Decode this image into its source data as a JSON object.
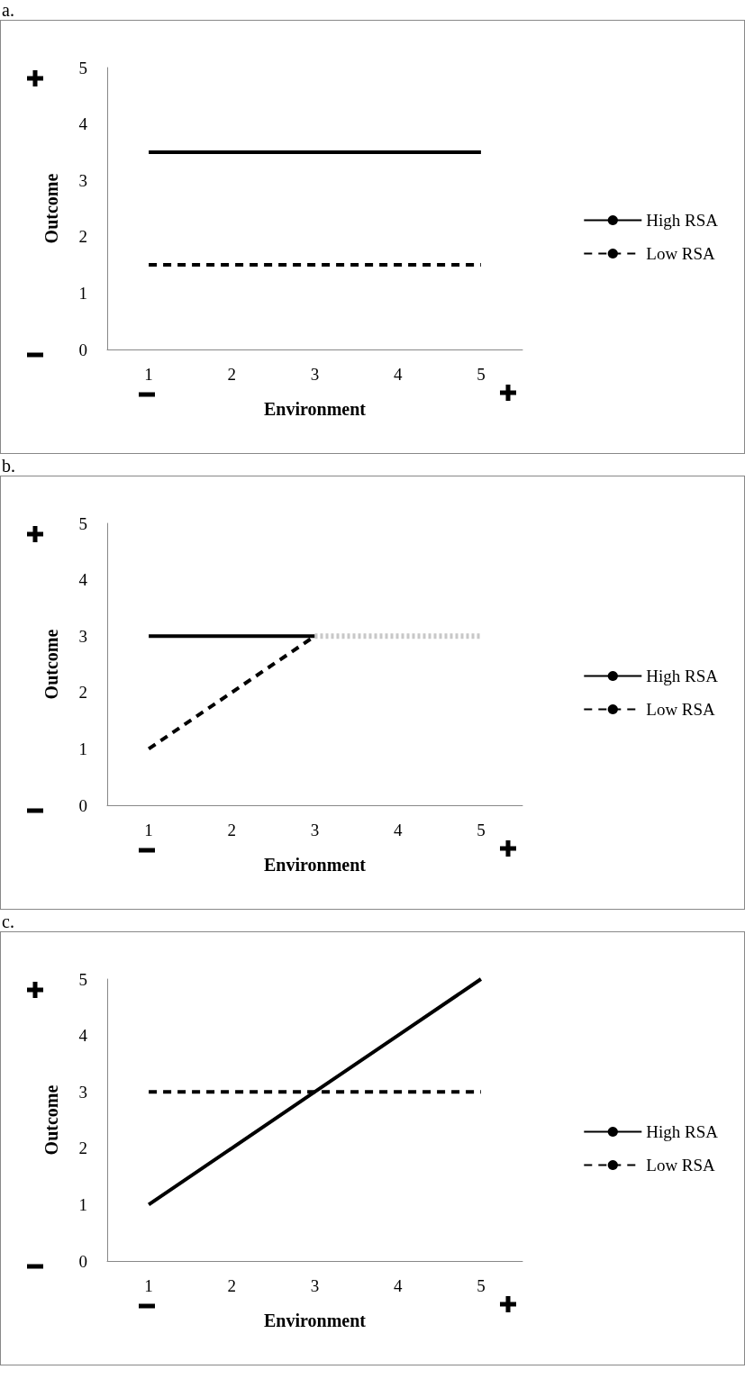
{
  "chart_data": [
    {
      "type": "line",
      "title": "a.",
      "xlabel": "Environment",
      "ylabel": "Outcome",
      "categories": [
        "1",
        "2",
        "3",
        "4",
        "5"
      ],
      "ylim": [
        0,
        5
      ],
      "yticks": [
        0,
        1,
        2,
        3,
        4,
        5
      ],
      "grid": false,
      "legend": "right",
      "marker": "none",
      "series": [
        {
          "name": "High RSA",
          "color": "#000000",
          "line_style": "solid",
          "values": [
            3.5,
            3.5,
            3.5,
            3.5,
            3.5
          ]
        },
        {
          "name": "Low RSA",
          "color": "#000000",
          "line_style": "dashed",
          "values": [
            1.5,
            1.5,
            1.5,
            1.5,
            1.5
          ]
        }
      ]
    },
    {
      "type": "line",
      "title": "b.",
      "xlabel": "Environment",
      "ylabel": "Outcome",
      "categories": [
        "1",
        "2",
        "3",
        "4",
        "5"
      ],
      "ylim": [
        0,
        5
      ],
      "yticks": [
        0,
        1,
        2,
        3,
        4,
        5
      ],
      "grid": false,
      "legend": "right",
      "marker": "none",
      "series": [
        {
          "name": "High RSA",
          "color": "#000000",
          "line_style": "solid",
          "values": [
            3,
            3,
            3,
            null,
            null
          ]
        },
        {
          "name": "Low RSA",
          "color": "#000000",
          "line_style": "dashed",
          "values": [
            1,
            2,
            3,
            null,
            null
          ]
        },
        {
          "color": "#c8c8c8",
          "line_style": "dotted",
          "values": [
            null,
            null,
            3,
            3,
            3
          ]
        }
      ]
    },
    {
      "type": "line",
      "title": "c.",
      "xlabel": "Environment",
      "ylabel": "Outcome",
      "categories": [
        "1",
        "2",
        "3",
        "4",
        "5"
      ],
      "ylim": [
        0,
        5
      ],
      "yticks": [
        0,
        1,
        2,
        3,
        4,
        5
      ],
      "grid": false,
      "legend": "right",
      "marker": "none",
      "series": [
        {
          "name": "High RSA",
          "color": "#000000",
          "line_style": "solid",
          "values": [
            1,
            2,
            3,
            4,
            5
          ]
        },
        {
          "name": "Low RSA",
          "color": "#000000",
          "line_style": "dashed",
          "values": [
            3,
            3,
            3,
            3,
            3
          ]
        }
      ]
    }
  ]
}
